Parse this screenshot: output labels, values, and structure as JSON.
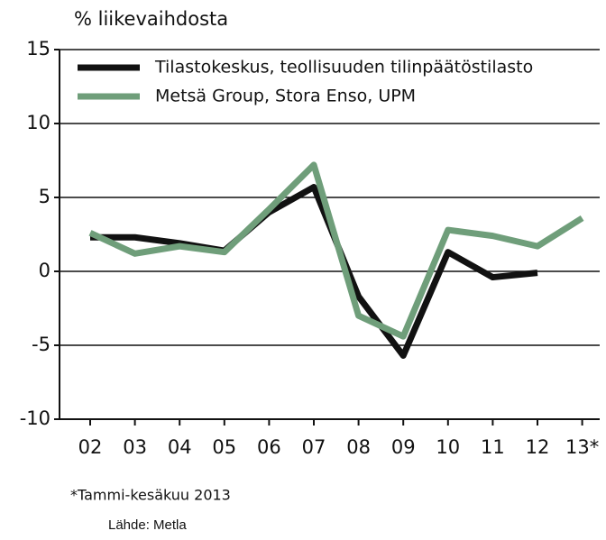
{
  "chart_data": {
    "type": "line",
    "y_label": "% liikevaihdosta",
    "categories": [
      "02",
      "03",
      "04",
      "05",
      "06",
      "07",
      "08",
      "09",
      "10",
      "11",
      "12",
      "13*"
    ],
    "series": [
      {
        "name": "Tilastokeskus, teollisuuden tilinpäätöstilasto",
        "color": "#111111",
        "values": [
          2.3,
          2.3,
          1.9,
          1.4,
          4.0,
          5.7,
          -1.7,
          -5.7,
          1.3,
          -0.4,
          -0.1,
          null
        ]
      },
      {
        "name": "Metsä Group, Stora Enso, UPM",
        "color": "#6f9e7a",
        "values": [
          2.6,
          1.2,
          1.7,
          1.3,
          4.2,
          7.2,
          -3.0,
          -4.4,
          2.8,
          2.4,
          1.7,
          3.6
        ]
      }
    ],
    "ylim": [
      -10,
      15
    ],
    "yticks": [
      -10,
      -5,
      0,
      5,
      10,
      15
    ],
    "grid": true,
    "legend": "upper left",
    "footnote": "*Tammi-kesäkuu 2013",
    "source": "Lähde: Metla"
  }
}
